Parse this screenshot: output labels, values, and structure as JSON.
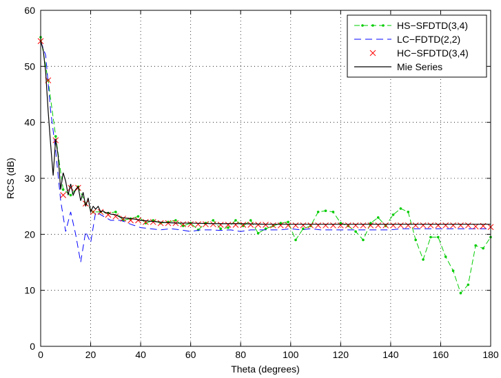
{
  "chart_data": {
    "type": "line",
    "title": "",
    "xlabel": "Theta (degrees)",
    "ylabel": "RCS (dB)",
    "xlim": [
      0,
      180
    ],
    "ylim": [
      0,
      60
    ],
    "xticks": [
      0,
      20,
      40,
      60,
      80,
      100,
      120,
      140,
      160,
      180
    ],
    "yticks": [
      0,
      10,
      20,
      30,
      40,
      50,
      60
    ],
    "grid": true,
    "legend": "top-right",
    "series": [
      {
        "name": "HS−SFDTD(3,4)",
        "color": "#00cc00",
        "style": "dash-dot-marker",
        "x": [
          0,
          3,
          6,
          9,
          12,
          15,
          18,
          21,
          24,
          27,
          30,
          33,
          36,
          39,
          42,
          45,
          48,
          51,
          54,
          57,
          60,
          63,
          66,
          69,
          72,
          75,
          78,
          81,
          84,
          87,
          90,
          93,
          96,
          99,
          102,
          105,
          108,
          111,
          114,
          117,
          120,
          123,
          126,
          129,
          132,
          135,
          138,
          141,
          144,
          147,
          150,
          153,
          156,
          159,
          162,
          165,
          168,
          171,
          174,
          177,
          180
        ],
        "y": [
          55.2,
          47.5,
          37.5,
          28.0,
          27.0,
          28.5,
          25.5,
          24.0,
          24.0,
          23.8,
          24.0,
          22.5,
          22.8,
          23.2,
          22.0,
          22.5,
          22.0,
          22.2,
          22.5,
          21.5,
          22.0,
          20.8,
          22.0,
          22.5,
          21.0,
          21.2,
          22.5,
          21.5,
          22.5,
          20.2,
          21.0,
          21.5,
          22.0,
          22.2,
          19.0,
          21.0,
          21.5,
          24.0,
          24.2,
          24.0,
          22.0,
          21.5,
          20.5,
          19.0,
          22.0,
          23.0,
          21.5,
          23.5,
          24.6,
          24.0,
          19.0,
          15.5,
          19.5,
          19.5,
          16.0,
          13.5,
          9.5,
          11.0,
          18.0,
          17.5,
          19.5
        ]
      },
      {
        "name": "LC−FDTD(2,2)",
        "color": "#0000ff",
        "style": "dashed",
        "x": [
          0,
          2,
          4,
          6,
          8,
          10,
          12,
          14,
          16,
          18,
          20,
          22,
          24,
          26,
          28,
          30,
          32,
          34,
          36,
          38,
          40,
          44,
          48,
          52,
          56,
          60,
          64,
          68,
          72,
          76,
          80,
          84,
          88,
          92,
          96,
          100,
          104,
          108,
          112,
          116,
          120,
          124,
          128,
          132,
          136,
          140,
          144,
          148,
          152,
          156,
          160,
          164,
          168,
          172,
          176,
          180
        ],
        "y": [
          54.5,
          52.0,
          42.0,
          35.0,
          26.0,
          20.5,
          24.0,
          20.0,
          15.0,
          20.5,
          18.5,
          24.0,
          23.5,
          23.0,
          22.5,
          22.5,
          22.5,
          22.2,
          21.8,
          21.5,
          21.2,
          21.0,
          20.8,
          21.0,
          20.8,
          20.5,
          20.8,
          20.8,
          20.7,
          20.8,
          20.5,
          20.8,
          20.8,
          20.8,
          20.8,
          21.0,
          20.8,
          21.0,
          20.8,
          20.8,
          20.8,
          20.8,
          20.8,
          20.8,
          20.8,
          20.8,
          21.0,
          21.0,
          21.0,
          21.0,
          21.0,
          21.0,
          21.0,
          21.0,
          21.0,
          21.0
        ]
      },
      {
        "name": "HC−SFDTD(3,4)",
        "color": "#ff0000",
        "style": "x-marker",
        "x": [
          0,
          3,
          6,
          9,
          12,
          15,
          18,
          21,
          24,
          27,
          30,
          33,
          36,
          39,
          42,
          45,
          48,
          51,
          54,
          57,
          60,
          63,
          66,
          69,
          72,
          75,
          78,
          81,
          84,
          87,
          90,
          93,
          96,
          99,
          102,
          105,
          108,
          111,
          114,
          117,
          120,
          123,
          126,
          129,
          132,
          135,
          138,
          141,
          144,
          147,
          150,
          153,
          156,
          159,
          162,
          165,
          168,
          171,
          174,
          177,
          180
        ],
        "y": [
          54.5,
          47.5,
          36.8,
          27.0,
          28.3,
          28.3,
          25.5,
          24.0,
          24.0,
          23.5,
          23.2,
          22.8,
          22.5,
          22.5,
          22.2,
          22.2,
          22.0,
          22.0,
          22.0,
          21.8,
          21.8,
          21.8,
          21.8,
          21.8,
          21.7,
          21.7,
          21.7,
          21.7,
          21.7,
          21.7,
          21.7,
          21.6,
          21.6,
          21.6,
          21.6,
          21.6,
          21.6,
          21.6,
          21.6,
          21.6,
          21.6,
          21.6,
          21.6,
          21.6,
          21.6,
          21.6,
          21.6,
          21.6,
          21.6,
          21.6,
          21.6,
          21.6,
          21.6,
          21.6,
          21.6,
          21.6,
          21.6,
          21.6,
          21.4,
          21.5,
          21.3
        ]
      },
      {
        "name": "Mie Series",
        "color": "#000000",
        "style": "solid",
        "x": [
          0,
          1,
          2,
          3,
          4,
          5,
          6,
          7,
          8,
          9,
          10,
          11,
          12,
          13,
          14,
          15,
          16,
          17,
          18,
          19,
          20,
          21,
          22,
          23,
          24,
          25,
          26,
          27,
          28,
          30,
          32,
          34,
          36,
          38,
          40,
          45,
          50,
          55,
          60,
          70,
          80,
          90,
          100,
          110,
          120,
          130,
          140,
          150,
          160,
          170,
          180
        ],
        "y": [
          54.5,
          53.0,
          49.0,
          42.0,
          36.0,
          30.5,
          37.0,
          34.0,
          28.0,
          31.0,
          29.5,
          27.0,
          29.0,
          27.0,
          28.0,
          28.5,
          26.0,
          27.5,
          25.0,
          26.5,
          24.0,
          25.0,
          24.5,
          25.0,
          24.0,
          24.2,
          23.8,
          23.9,
          23.6,
          23.5,
          23.0,
          22.9,
          22.8,
          22.7,
          22.5,
          22.3,
          22.1,
          22.0,
          22.0,
          21.9,
          21.9,
          21.8,
          21.8,
          21.8,
          21.8,
          21.8,
          21.8,
          21.8,
          21.8,
          21.8,
          21.8
        ]
      }
    ]
  }
}
